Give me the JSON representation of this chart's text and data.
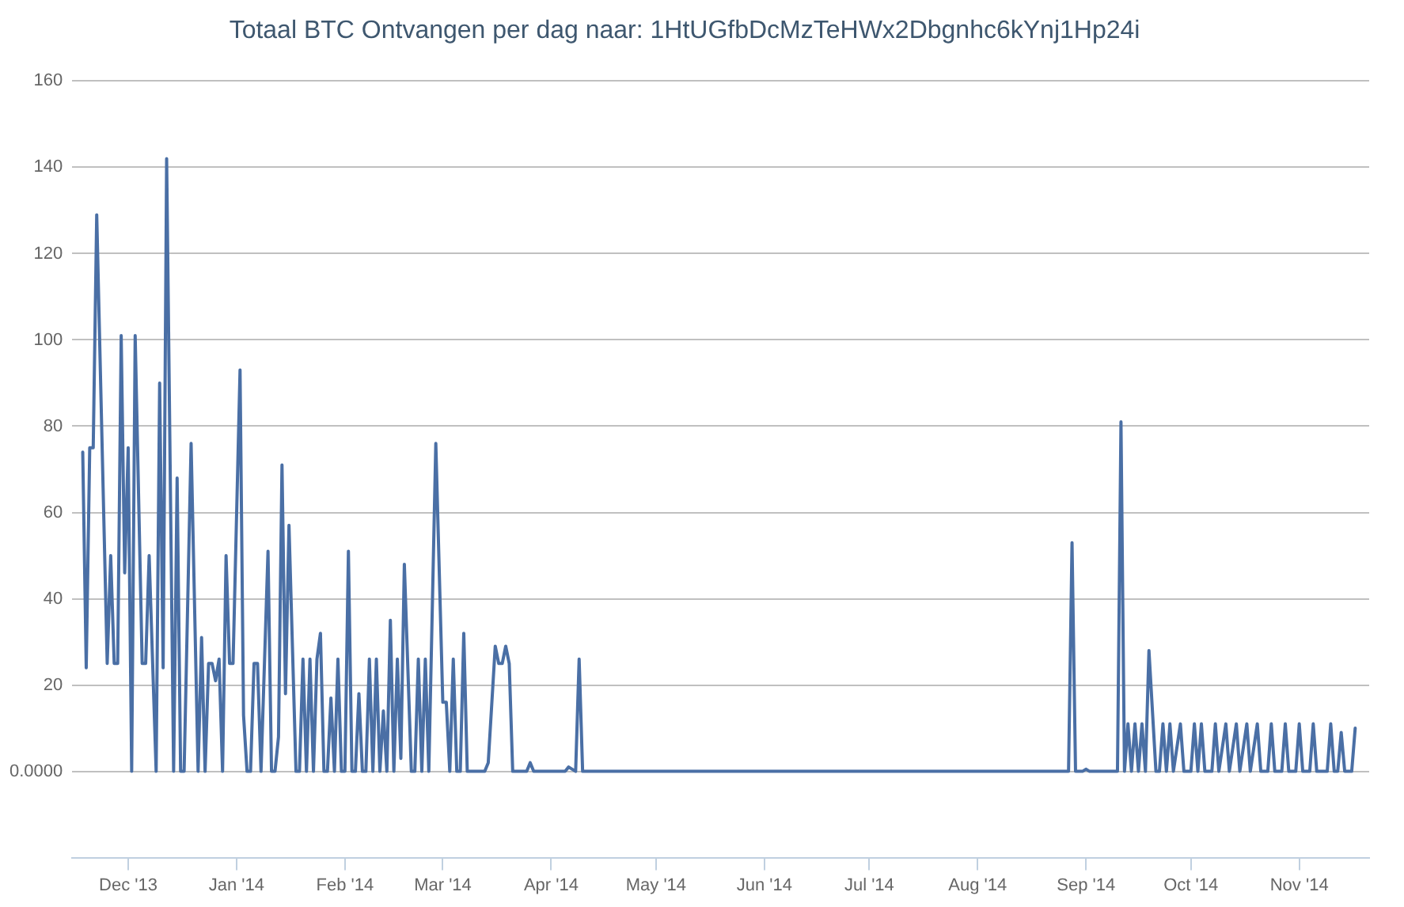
{
  "chart_data": {
    "type": "line",
    "title": "Totaal BTC Ontvangen per dag naar: 1HtUGfbDcMzTeHWx2Dbgnhc6kYnj1Hp24i",
    "x": [
      "2013-11-18",
      "2013-11-19",
      "2013-11-20",
      "2013-11-21",
      "2013-11-22",
      "2013-11-25",
      "2013-11-26",
      "2013-11-27",
      "2013-11-28",
      "2013-11-29",
      "2013-11-30",
      "2013-12-01",
      "2013-12-02",
      "2013-12-03",
      "2013-12-05",
      "2013-12-06",
      "2013-12-07",
      "2013-12-09",
      "2013-12-10",
      "2013-12-11",
      "2013-12-12",
      "2013-12-14",
      "2013-12-15",
      "2013-12-16",
      "2013-12-17",
      "2013-12-19",
      "2013-12-21",
      "2013-12-22",
      "2013-12-23",
      "2013-12-24",
      "2013-12-25",
      "2013-12-26",
      "2013-12-27",
      "2013-12-28",
      "2013-12-29",
      "2013-12-30",
      "2013-12-31",
      "2014-01-02",
      "2014-01-03",
      "2014-01-04",
      "2014-01-05",
      "2014-01-06",
      "2014-01-07",
      "2014-01-08",
      "2014-01-10",
      "2014-01-11",
      "2014-01-12",
      "2014-01-13",
      "2014-01-14",
      "2014-01-15",
      "2014-01-16",
      "2014-01-18",
      "2014-01-19",
      "2014-01-20",
      "2014-01-21",
      "2014-01-22",
      "2014-01-23",
      "2014-01-24",
      "2014-01-25",
      "2014-01-26",
      "2014-01-27",
      "2014-01-28",
      "2014-01-29",
      "2014-01-30",
      "2014-01-31",
      "2014-02-01",
      "2014-02-02",
      "2014-02-03",
      "2014-02-04",
      "2014-02-05",
      "2014-02-06",
      "2014-02-07",
      "2014-02-08",
      "2014-02-09",
      "2014-02-10",
      "2014-02-11",
      "2014-02-12",
      "2014-02-13",
      "2014-02-14",
      "2014-02-15",
      "2014-02-16",
      "2014-02-17",
      "2014-02-18",
      "2014-02-20",
      "2014-02-21",
      "2014-02-22",
      "2014-02-23",
      "2014-02-24",
      "2014-02-25",
      "2014-02-27",
      "2014-03-01",
      "2014-03-02",
      "2014-03-03",
      "2014-03-04",
      "2014-03-05",
      "2014-03-06",
      "2014-03-07",
      "2014-03-08",
      "2014-03-13",
      "2014-03-14",
      "2014-03-16",
      "2014-03-17",
      "2014-03-18",
      "2014-03-19",
      "2014-03-20",
      "2014-03-21",
      "2014-03-25",
      "2014-03-26",
      "2014-03-27",
      "2014-04-05",
      "2014-04-06",
      "2014-04-08",
      "2014-04-09",
      "2014-04-10",
      "2014-08-27",
      "2014-08-28",
      "2014-08-29",
      "2014-08-31",
      "2014-09-01",
      "2014-09-02",
      "2014-09-10",
      "2014-09-11",
      "2014-09-12",
      "2014-09-13",
      "2014-09-14",
      "2014-09-15",
      "2014-09-16",
      "2014-09-17",
      "2014-09-18",
      "2014-09-19",
      "2014-09-21",
      "2014-09-22",
      "2014-09-23",
      "2014-09-24",
      "2014-09-25",
      "2014-09-26",
      "2014-09-28",
      "2014-09-29",
      "2014-10-01",
      "2014-10-02",
      "2014-10-03",
      "2014-10-04",
      "2014-10-05",
      "2014-10-07",
      "2014-10-08",
      "2014-10-09",
      "2014-10-11",
      "2014-10-12",
      "2014-10-14",
      "2014-10-15",
      "2014-10-17",
      "2014-10-18",
      "2014-10-20",
      "2014-10-21",
      "2014-10-23",
      "2014-10-24",
      "2014-10-25",
      "2014-10-27",
      "2014-10-28",
      "2014-10-29",
      "2014-10-31",
      "2014-11-01",
      "2014-11-02",
      "2014-11-04",
      "2014-11-05",
      "2014-11-06",
      "2014-11-09",
      "2014-11-10",
      "2014-11-11",
      "2014-11-12",
      "2014-11-13",
      "2014-11-14",
      "2014-11-16",
      "2014-11-17"
    ],
    "series": [
      {
        "color": "#4a6fa5",
        "values": [
          74,
          24,
          75,
          75,
          129,
          25,
          50,
          25,
          25,
          101,
          46,
          75,
          0,
          101,
          25,
          25,
          50,
          0,
          90,
          24,
          142,
          0,
          68,
          0,
          0,
          76,
          0,
          31,
          0,
          25,
          25,
          21,
          26,
          0,
          50,
          25,
          25,
          93,
          13,
          0,
          0,
          25,
          25,
          0,
          51,
          0,
          0,
          8,
          71,
          18,
          57,
          0,
          0,
          26,
          0,
          26,
          0,
          26,
          32,
          0,
          0,
          17,
          0,
          26,
          0,
          0,
          51,
          0,
          0,
          18,
          0,
          0,
          26,
          0,
          26,
          0,
          14,
          0,
          35,
          0,
          26,
          3,
          48,
          0,
          0,
          26,
          0,
          26,
          0,
          76,
          16,
          16,
          0,
          26,
          0,
          0,
          32,
          0,
          0,
          2,
          29,
          25,
          25,
          29,
          25,
          0,
          0,
          2,
          0,
          0,
          1,
          0,
          26,
          0,
          0,
          53,
          0,
          0,
          0.5,
          0,
          0,
          81,
          0,
          11,
          0,
          11,
          0,
          11,
          0,
          28,
          0,
          0,
          11,
          0,
          11,
          0,
          11,
          0,
          0,
          11,
          0,
          11,
          0,
          0,
          11,
          0,
          11,
          0,
          11,
          0,
          11,
          0,
          11,
          0,
          0,
          11,
          0,
          0,
          11,
          0,
          0,
          11,
          0,
          0,
          11,
          0,
          0,
          11,
          0,
          0,
          9,
          0,
          0,
          10
        ]
      }
    ],
    "xlim": [
      "2013-11-15",
      "2014-11-21"
    ],
    "xticks": [
      {
        "value": "2013-12-01",
        "label": "Dec '13"
      },
      {
        "value": "2014-01-01",
        "label": "Jan '14"
      },
      {
        "value": "2014-02-01",
        "label": "Feb '14"
      },
      {
        "value": "2014-03-01",
        "label": "Mar '14"
      },
      {
        "value": "2014-04-01",
        "label": "Apr '14"
      },
      {
        "value": "2014-05-01",
        "label": "May '14"
      },
      {
        "value": "2014-06-01",
        "label": "Jun '14"
      },
      {
        "value": "2014-07-01",
        "label": "Jul '14"
      },
      {
        "value": "2014-08-01",
        "label": "Aug '14"
      },
      {
        "value": "2014-09-01",
        "label": "Sep '14"
      },
      {
        "value": "2014-10-01",
        "label": "Oct '14"
      },
      {
        "value": "2014-11-01",
        "label": "Nov '14"
      }
    ],
    "ylim": [
      -20,
      160
    ],
    "yticks": [
      {
        "value": 0,
        "label": "0.0000"
      },
      20,
      40,
      60,
      80,
      100,
      120,
      140,
      160
    ],
    "grid": "y",
    "legend": false,
    "marker": "none",
    "line_style": "solid"
  }
}
